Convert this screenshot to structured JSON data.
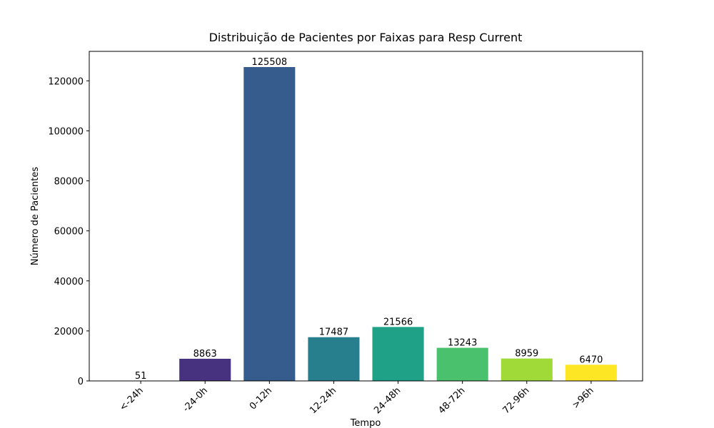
{
  "chart_data": {
    "type": "bar",
    "title": "Distribuição de Pacientes por Faixas para Resp Current",
    "x_label": "Tempo",
    "y_label": "Número de Pacientes",
    "categories": [
      "<-24h",
      "-24-0h",
      "0-12h",
      "12-24h",
      "24-48h",
      "48-72h",
      "72-96h",
      ">96h"
    ],
    "values": [
      51,
      8863,
      125508,
      17487,
      21566,
      13243,
      8959,
      6470
    ],
    "colors": [
      "#440154",
      "#46327e",
      "#365c8d",
      "#277f8e",
      "#1fa187",
      "#4ac16d",
      "#a0da39",
      "#fde725"
    ],
    "ylim": [
      0,
      131783
    ],
    "yticks": [
      0,
      20000,
      40000,
      60000,
      80000,
      100000,
      120000
    ]
  }
}
